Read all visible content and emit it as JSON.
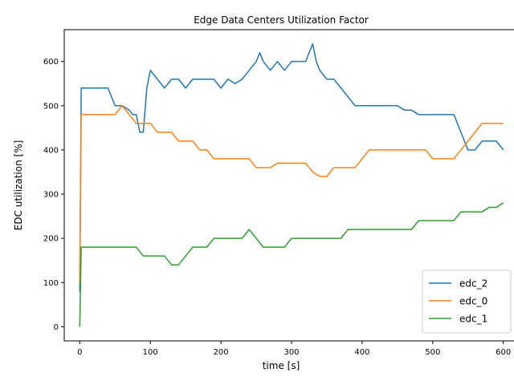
{
  "chart_data": {
    "type": "line",
    "title": "Edge Data Centers Utilization Factor",
    "xlabel": "time [s]",
    "ylabel": "EDC utilization [%]",
    "xlim": [
      -22,
      622
    ],
    "ylim": [
      -32,
      672
    ],
    "xticks": [
      0,
      100,
      200,
      300,
      400,
      500,
      600
    ],
    "yticks": [
      0,
      100,
      200,
      300,
      400,
      500,
      600
    ],
    "grid": false,
    "legend_position": "lower right",
    "series": [
      {
        "name": "edc_2",
        "color": "#1f77b4",
        "x": [
          0,
          2,
          4,
          10,
          20,
          30,
          40,
          45,
          50,
          60,
          70,
          75,
          80,
          85,
          90,
          95,
          100,
          110,
          120,
          130,
          140,
          150,
          160,
          170,
          180,
          190,
          200,
          210,
          220,
          230,
          240,
          250,
          255,
          260,
          270,
          280,
          290,
          300,
          310,
          320,
          325,
          330,
          335,
          340,
          350,
          360,
          370,
          380,
          390,
          400,
          410,
          420,
          430,
          440,
          450,
          460,
          470,
          480,
          490,
          500,
          510,
          520,
          530,
          540,
          550,
          560,
          570,
          580,
          590,
          600
        ],
        "y": [
          80,
          540,
          540,
          540,
          540,
          540,
          540,
          520,
          500,
          500,
          490,
          480,
          480,
          440,
          440,
          540,
          580,
          560,
          540,
          560,
          560,
          540,
          560,
          560,
          560,
          560,
          540,
          560,
          550,
          560,
          580,
          600,
          620,
          600,
          580,
          600,
          580,
          600,
          600,
          600,
          620,
          640,
          600,
          580,
          560,
          560,
          540,
          520,
          500,
          500,
          500,
          500,
          500,
          500,
          500,
          490,
          490,
          480,
          480,
          480,
          480,
          480,
          480,
          440,
          400,
          400,
          420,
          420,
          420,
          400
        ]
      },
      {
        "name": "edc_0",
        "color": "#ff7f0e",
        "x": [
          0,
          2,
          4,
          10,
          20,
          30,
          40,
          50,
          60,
          70,
          80,
          90,
          100,
          110,
          120,
          130,
          140,
          150,
          160,
          170,
          180,
          190,
          200,
          210,
          220,
          230,
          240,
          250,
          260,
          270,
          280,
          290,
          300,
          310,
          320,
          330,
          340,
          350,
          360,
          370,
          380,
          390,
          400,
          410,
          420,
          430,
          440,
          450,
          460,
          470,
          480,
          490,
          500,
          510,
          520,
          530,
          540,
          550,
          560,
          570,
          580,
          590,
          600
        ],
        "y": [
          100,
          480,
          480,
          480,
          480,
          480,
          480,
          480,
          500,
          480,
          460,
          460,
          460,
          440,
          440,
          440,
          420,
          420,
          420,
          400,
          400,
          380,
          380,
          380,
          380,
          380,
          380,
          360,
          360,
          360,
          370,
          370,
          370,
          370,
          370,
          350,
          340,
          340,
          360,
          360,
          360,
          360,
          380,
          400,
          400,
          400,
          400,
          400,
          400,
          400,
          400,
          400,
          380,
          380,
          380,
          380,
          400,
          420,
          440,
          460,
          460,
          460,
          460
        ]
      },
      {
        "name": "edc_1",
        "color": "#2ca02c",
        "x": [
          0,
          2,
          4,
          10,
          20,
          30,
          40,
          50,
          60,
          70,
          80,
          90,
          100,
          110,
          120,
          130,
          140,
          150,
          160,
          170,
          180,
          190,
          200,
          210,
          220,
          230,
          240,
          250,
          260,
          270,
          280,
          290,
          300,
          310,
          320,
          330,
          340,
          350,
          360,
          370,
          380,
          390,
          400,
          410,
          420,
          430,
          440,
          450,
          460,
          470,
          480,
          490,
          500,
          510,
          520,
          530,
          540,
          550,
          560,
          570,
          580,
          590,
          600
        ],
        "y": [
          0,
          180,
          180,
          180,
          180,
          180,
          180,
          180,
          180,
          180,
          180,
          160,
          160,
          160,
          160,
          140,
          140,
          160,
          180,
          180,
          180,
          200,
          200,
          200,
          200,
          200,
          220,
          200,
          180,
          180,
          180,
          180,
          200,
          200,
          200,
          200,
          200,
          200,
          200,
          200,
          220,
          220,
          220,
          220,
          220,
          220,
          220,
          220,
          220,
          220,
          240,
          240,
          240,
          240,
          240,
          240,
          260,
          260,
          260,
          260,
          270,
          270,
          280
        ]
      }
    ]
  }
}
